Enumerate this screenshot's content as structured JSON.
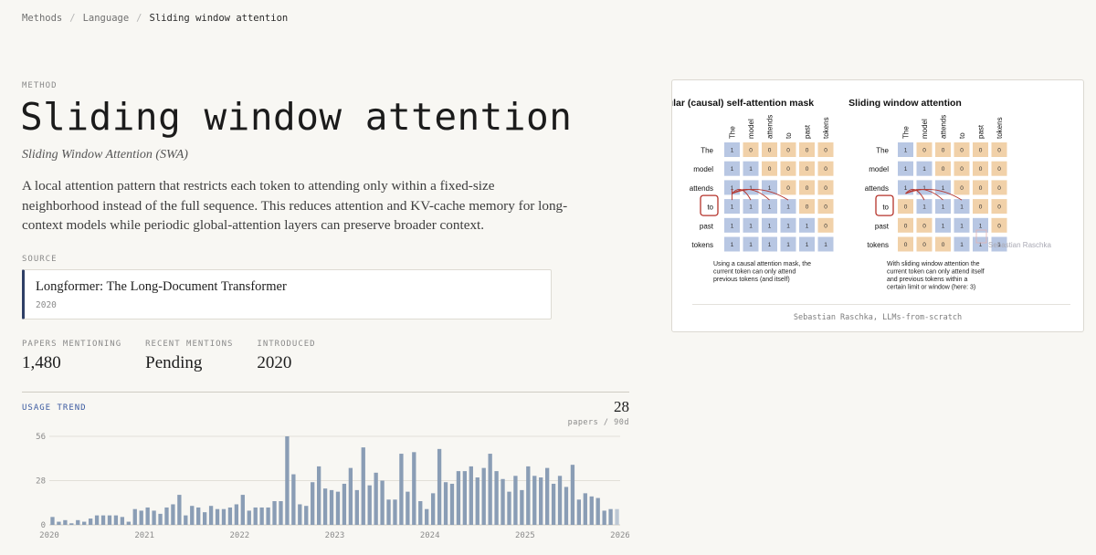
{
  "breadcrumb": {
    "items": [
      "Methods",
      "Language"
    ],
    "current": "Sliding window attention"
  },
  "method": {
    "label": "METHOD",
    "title": "Sliding window attention",
    "subtitle": "Sliding Window Attention (SWA)",
    "description": "A local attention pattern that restricts each token to attending only within a fixed-size neighborhood instead of the full sequence. This reduces attention and KV-cache memory for long-context models while periodic global-attention layers can preserve broader context."
  },
  "source": {
    "label": "SOURCE",
    "title": "Longformer: The Long-Document Transformer",
    "year": "2020"
  },
  "stats": [
    {
      "label": "PAPERS MENTIONING",
      "value": "1,480"
    },
    {
      "label": "RECENT MENTIONS",
      "value": "Pending"
    },
    {
      "label": "INTRODUCED",
      "value": "2020"
    }
  ],
  "trend": {
    "label": "USAGE TREND",
    "value": "28",
    "unit": "papers / 90d"
  },
  "chart_data": {
    "type": "bar",
    "title": "",
    "xlabel": "",
    "ylabel": "",
    "ylim": [
      0,
      56
    ],
    "yticks": [
      0,
      28,
      56
    ],
    "xticks": [
      "2020",
      "2021",
      "2022",
      "2023",
      "2024",
      "2025",
      "2026"
    ],
    "grid": true,
    "bar_color": "#8a9db5",
    "last_bar_color": "#bcc7d4",
    "values": [
      5,
      2,
      3,
      1,
      3,
      2,
      4,
      6,
      6,
      6,
      6,
      5,
      2,
      10,
      9,
      11,
      9,
      7,
      11,
      13,
      19,
      6,
      12,
      11,
      8,
      12,
      10,
      10,
      11,
      13,
      19,
      9,
      11,
      11,
      11,
      15,
      15,
      56,
      32,
      13,
      12,
      27,
      37,
      23,
      22,
      21,
      26,
      36,
      22,
      49,
      25,
      33,
      28,
      16,
      16,
      45,
      21,
      46,
      15,
      10,
      20,
      48,
      27,
      26,
      34,
      34,
      37,
      30,
      36,
      45,
      34,
      29,
      21,
      31,
      22,
      37,
      31,
      30,
      36,
      26,
      31,
      24,
      38,
      16,
      20,
      18,
      17,
      9,
      10,
      10
    ],
    "last_value_muted": true
  },
  "figure": {
    "caption": "Sebastian Raschka, LLMs-from-scratch",
    "watermark": "Sebastian Raschka",
    "left": {
      "title": "Regular (causal) self-attention mask",
      "note": [
        "Using a causal attention mask, the",
        "current token can only attend",
        "previous tokens (and itself)"
      ]
    },
    "right": {
      "title": "Sliding window attention",
      "note": [
        "With sliding window attention the",
        "current token can only attend itself",
        "and previous tokens within a",
        "certain limit or window (here: 3)"
      ]
    },
    "tokens": [
      "The",
      "model",
      "attends",
      "to",
      "past",
      "tokens"
    ],
    "highlight_token": "to",
    "window": 3,
    "colors": {
      "on": "#b8c7e3",
      "off": "#f1d1a9",
      "highlight": "#b5322a"
    }
  }
}
